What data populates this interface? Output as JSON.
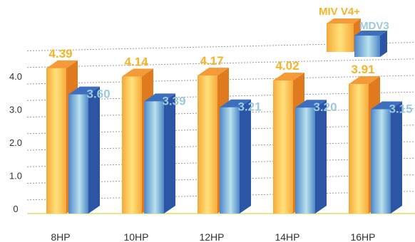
{
  "chart_data": {
    "type": "bar",
    "categories": [
      "8HP",
      "10HP",
      "12HP",
      "14HP",
      "16HP"
    ],
    "series": [
      {
        "name": "MIV V4+",
        "values": [
          4.39,
          4.14,
          4.17,
          4.02,
          3.91
        ]
      },
      {
        "name": "MDV3",
        "values": [
          3.6,
          3.39,
          3.21,
          3.2,
          3.15
        ]
      }
    ],
    "data_labels": [
      [
        "4.39",
        "4.14",
        "4.17",
        "4.02",
        "3.91"
      ],
      [
        "3.60",
        "3.39",
        "3.21",
        "3.20",
        "3.15"
      ]
    ],
    "yticks": [
      "0",
      "1.0",
      "2.0",
      "3.0",
      "4.0"
    ],
    "ylim": [
      0,
      5
    ],
    "grid": true,
    "legend_position": "top-right",
    "colors": {
      "series1_front": "#F7A93A",
      "series1_light": "#FFE27A",
      "series1_side": "#E07A1E",
      "series1_top": "#F49A36",
      "series1_label": "#F6B429",
      "series2_front": "#4E86C7",
      "series2_light": "#B8E2EE",
      "series2_side": "#2C55A6",
      "series2_top": "#3E6FBF",
      "series2_label": "#9CC9DB",
      "grid": "#9A9A9A",
      "floor": "#E6E88A"
    }
  }
}
